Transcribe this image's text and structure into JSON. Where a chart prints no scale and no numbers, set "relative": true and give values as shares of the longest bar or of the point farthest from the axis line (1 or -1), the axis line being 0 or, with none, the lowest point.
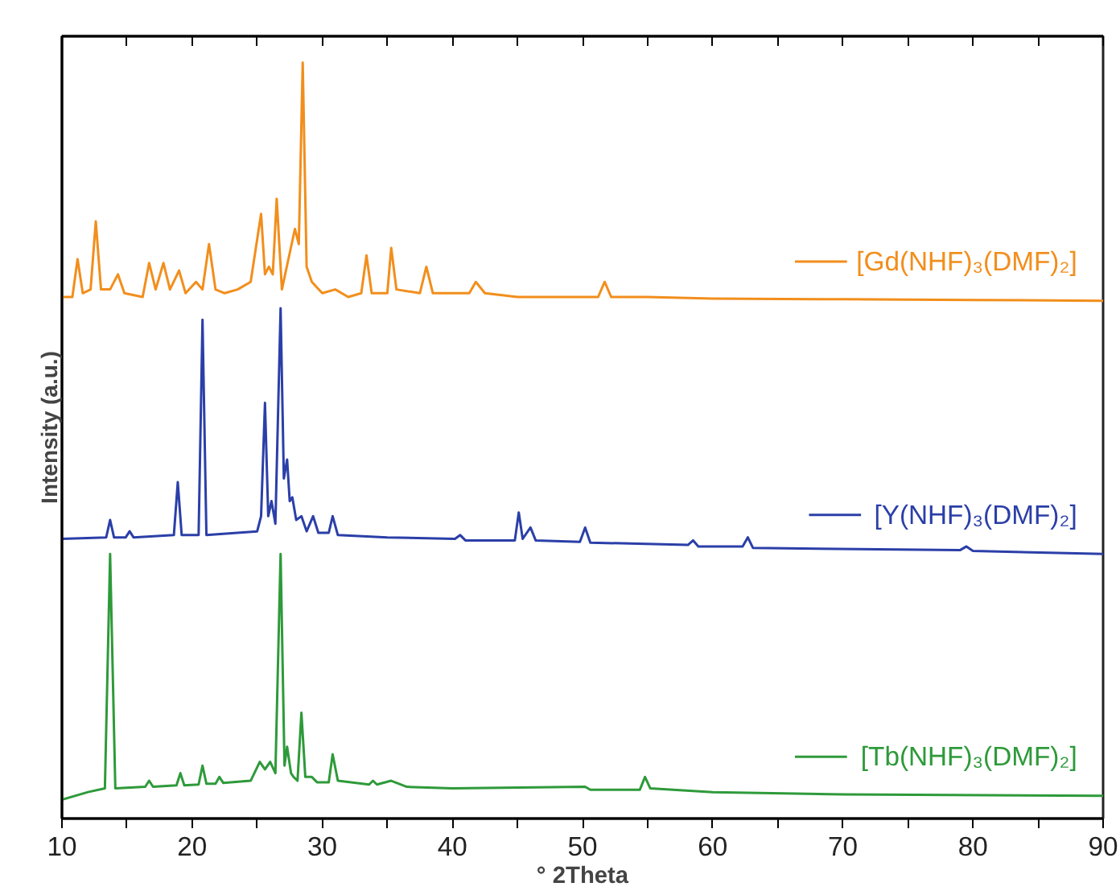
{
  "chart_data": {
    "type": "line",
    "relative": true,
    "xlabel": "° 2Theta",
    "ylabel": "Intensity (a.u.)",
    "xlim": [
      10,
      90
    ],
    "xticks": [
      10,
      {
        "value": 15,
        "label": null
      },
      20,
      {
        "value": 25,
        "label": null
      },
      30,
      {
        "value": 35,
        "label": null
      },
      40,
      {
        "value": 45,
        "label": null
      },
      50,
      {
        "value": 55,
        "label": null
      },
      60,
      {
        "value": 65,
        "label": null
      },
      70,
      {
        "value": 75,
        "label": null
      },
      80,
      {
        "value": 85,
        "label": null
      },
      90
    ],
    "tick_labels": "x",
    "grid": false,
    "legend": "right",
    "marker": "none",
    "line_style": "solid",
    "series": [
      {
        "name": "[Gd(NHF)₃(DMF)₂]",
        "color": "#f28e1c",
        "x": [
          10,
          10.8,
          11.2,
          11.6,
          12.2,
          12.6,
          13.0,
          13.7,
          14.3,
          14.8,
          16.2,
          16.7,
          17.2,
          17.8,
          18.3,
          19.0,
          19.5,
          20.3,
          20.8,
          21.3,
          21.8,
          22.5,
          23.5,
          24.5,
          25.3,
          25.6,
          25.9,
          26.2,
          26.5,
          26.9,
          27.4,
          27.9,
          28.2,
          28.5,
          28.8,
          29.2,
          30,
          31,
          32,
          33.0,
          33.4,
          33.8,
          35.0,
          35.3,
          35.7,
          37.5,
          38.0,
          38.5,
          41.3,
          41.8,
          42.5,
          45,
          48,
          51.2,
          51.7,
          52.2,
          55,
          60,
          70,
          80,
          90
        ],
        "values": [
          0.69,
          0.69,
          0.74,
          0.695,
          0.7,
          0.79,
          0.7,
          0.7,
          0.72,
          0.695,
          0.69,
          0.735,
          0.7,
          0.735,
          0.7,
          0.725,
          0.695,
          0.71,
          0.7,
          0.76,
          0.7,
          0.695,
          0.7,
          0.71,
          0.8,
          0.72,
          0.73,
          0.72,
          0.82,
          0.7,
          0.74,
          0.78,
          0.76,
          1.0,
          0.73,
          0.71,
          0.695,
          0.7,
          0.69,
          0.695,
          0.745,
          0.695,
          0.695,
          0.755,
          0.7,
          0.695,
          0.73,
          0.695,
          0.695,
          0.71,
          0.695,
          0.69,
          0.69,
          0.69,
          0.71,
          0.69,
          0.69,
          0.688,
          0.687,
          0.686,
          0.685
        ]
      },
      {
        "name": "[Y(NHF)₃(DMF)₂]",
        "color": "#2b3fa8",
        "x": [
          10,
          13.4,
          13.7,
          14.0,
          14.9,
          15.2,
          15.5,
          18.6,
          18.9,
          19.2,
          20.5,
          20.8,
          21.1,
          25.0,
          25.3,
          25.6,
          25.85,
          26.1,
          26.4,
          26.8,
          27.05,
          27.3,
          27.5,
          27.7,
          28.0,
          28.4,
          28.8,
          29.3,
          29.7,
          30.5,
          30.8,
          31.2,
          35,
          40.2,
          40.6,
          41,
          44.8,
          45.1,
          45.4,
          46.0,
          46.4,
          49.8,
          50.2,
          50.6,
          58.1,
          58.5,
          58.9,
          62.3,
          62.7,
          63.1,
          79,
          79.5,
          80,
          90
        ],
        "values": [
          0.37,
          0.372,
          0.395,
          0.372,
          0.372,
          0.38,
          0.372,
          0.375,
          0.445,
          0.375,
          0.375,
          0.66,
          0.375,
          0.38,
          0.4,
          0.55,
          0.4,
          0.42,
          0.39,
          0.675,
          0.45,
          0.475,
          0.42,
          0.425,
          0.395,
          0.4,
          0.38,
          0.4,
          0.378,
          0.378,
          0.4,
          0.375,
          0.372,
          0.37,
          0.375,
          0.368,
          0.368,
          0.405,
          0.37,
          0.385,
          0.368,
          0.366,
          0.385,
          0.365,
          0.362,
          0.368,
          0.36,
          0.36,
          0.372,
          0.358,
          0.355,
          0.36,
          0.354,
          0.35
        ]
      },
      {
        "name": "[Tb(NHF)₃(DMF)₂]",
        "color": "#2e9a3a",
        "x": [
          10,
          12,
          13.3,
          13.7,
          14.1,
          16.4,
          16.7,
          17.0,
          18.8,
          19.1,
          19.4,
          20.5,
          20.8,
          21.1,
          21.8,
          22.1,
          22.4,
          24.5,
          25.2,
          25.6,
          26.0,
          26.4,
          26.8,
          27.1,
          27.3,
          27.6,
          27.8,
          28.1,
          28.4,
          28.7,
          29.2,
          29.6,
          30.5,
          30.8,
          31.2,
          33.6,
          33.9,
          34.2,
          35.3,
          36.5,
          40,
          50.2,
          50.6,
          54.4,
          54.8,
          55.2,
          60,
          70,
          90
        ],
        "values": [
          0.025,
          0.035,
          0.04,
          0.35,
          0.04,
          0.042,
          0.05,
          0.042,
          0.044,
          0.06,
          0.044,
          0.045,
          0.07,
          0.046,
          0.046,
          0.055,
          0.047,
          0.05,
          0.075,
          0.065,
          0.075,
          0.06,
          0.35,
          0.07,
          0.095,
          0.06,
          0.055,
          0.05,
          0.14,
          0.055,
          0.055,
          0.048,
          0.048,
          0.085,
          0.05,
          0.045,
          0.05,
          0.045,
          0.05,
          0.042,
          0.04,
          0.042,
          0.038,
          0.038,
          0.055,
          0.04,
          0.035,
          0.032,
          0.03
        ]
      }
    ]
  }
}
